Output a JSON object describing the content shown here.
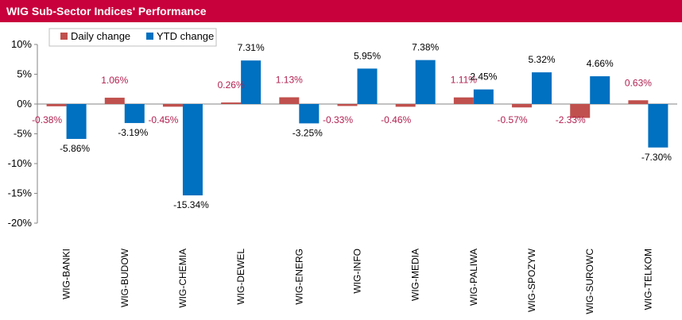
{
  "header": {
    "title": "WIG Sub-Sector Indices' Performance"
  },
  "colors": {
    "header_bg": "#c8003c",
    "daily": "#c0504d",
    "ytd": "#0070c0",
    "daily_label": "#b22050",
    "ytd_label": "#000000"
  },
  "chart_data": {
    "type": "bar",
    "title": "WIG Sub-Sector Indices' Performance",
    "categories": [
      "WIG-BANKI",
      "WIG-BUDOW",
      "WIG-CHEMIA",
      "WIG-DEWEL",
      "WIG-ENERG",
      "WIG-INFO",
      "WIG-MEDIA",
      "WIG-PALIWA",
      "WIG-SPOZYW",
      "WIG-SUROWC",
      "WIG-TELKOM"
    ],
    "series": [
      {
        "name": "Daily change",
        "values": [
          -0.38,
          1.06,
          -0.45,
          0.26,
          1.13,
          -0.33,
          -0.46,
          1.11,
          -0.57,
          -2.33,
          0.63
        ],
        "labels": [
          "-0.38%",
          "1.06%",
          "-0.45%",
          "0.26%",
          "1.13%",
          "-0.33%",
          "-0.46%",
          "1.11%",
          "-0.57%",
          "-2.33%",
          "0.63%"
        ]
      },
      {
        "name": "YTD change",
        "values": [
          -5.86,
          -3.19,
          -15.34,
          7.31,
          -3.25,
          5.95,
          7.38,
          2.45,
          5.32,
          4.66,
          -7.3
        ],
        "labels": [
          "-5.86%",
          "-3.19%",
          "-15.34%",
          "7.31%",
          "-3.25%",
          "5.95%",
          "7.38%",
          "2.45%",
          "5.32%",
          "4.66%",
          "-7.30%"
        ]
      }
    ],
    "ylim": [
      -20,
      10
    ],
    "yticks": [
      10,
      5,
      0,
      -5,
      -10,
      -15,
      -20
    ],
    "ytick_labels": [
      "10%",
      "5%",
      "0%",
      "-5%",
      "-10%",
      "-15%",
      "-20%"
    ],
    "legend": "top-left"
  }
}
